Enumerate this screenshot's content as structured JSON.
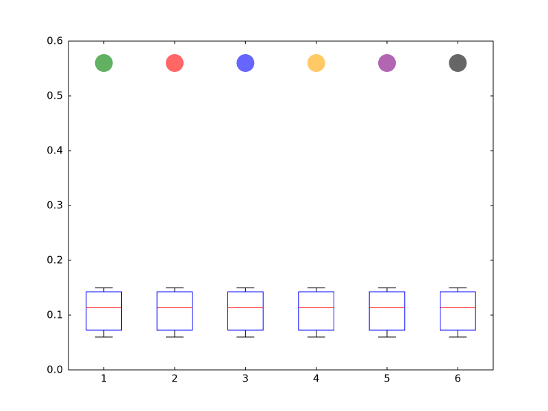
{
  "chart_data": {
    "type": "box",
    "xlim": [
      0.5,
      6.5
    ],
    "xticks": [
      1,
      2,
      3,
      4,
      5,
      6
    ],
    "ylim": [
      0,
      0.6
    ],
    "yticks": [
      {
        "value": 0,
        "label": "0.0"
      },
      0.1,
      0.2,
      0.3,
      0.4,
      0.5,
      0.6
    ],
    "box_color": "#0000ff",
    "median_color": "#ff0000",
    "whisker_color": "#000000",
    "boxes": [
      {
        "x": 1,
        "whisker_low": 0.06,
        "q1": 0.0725,
        "median": 0.114,
        "q3": 0.1425,
        "whisker_high": 0.15
      },
      {
        "x": 2,
        "whisker_low": 0.06,
        "q1": 0.0725,
        "median": 0.114,
        "q3": 0.1425,
        "whisker_high": 0.15
      },
      {
        "x": 3,
        "whisker_low": 0.06,
        "q1": 0.0725,
        "median": 0.114,
        "q3": 0.1425,
        "whisker_high": 0.15
      },
      {
        "x": 4,
        "whisker_low": 0.06,
        "q1": 0.0725,
        "median": 0.114,
        "q3": 0.1425,
        "whisker_high": 0.15
      },
      {
        "x": 5,
        "whisker_low": 0.06,
        "q1": 0.0725,
        "median": 0.114,
        "q3": 0.1425,
        "whisker_high": 0.15
      },
      {
        "x": 6,
        "whisker_low": 0.06,
        "q1": 0.0725,
        "median": 0.114,
        "q3": 0.1425,
        "whisker_high": 0.15
      }
    ],
    "points": {
      "x": [
        1,
        2,
        3,
        4,
        5,
        6
      ],
      "y": [
        0.56,
        0.56,
        0.56,
        0.56,
        0.56,
        0.56
      ],
      "colors": [
        "#62b062",
        "#ff6666",
        "#6666ff",
        "#ffc966",
        "#b266b2",
        "#666666"
      ]
    }
  }
}
